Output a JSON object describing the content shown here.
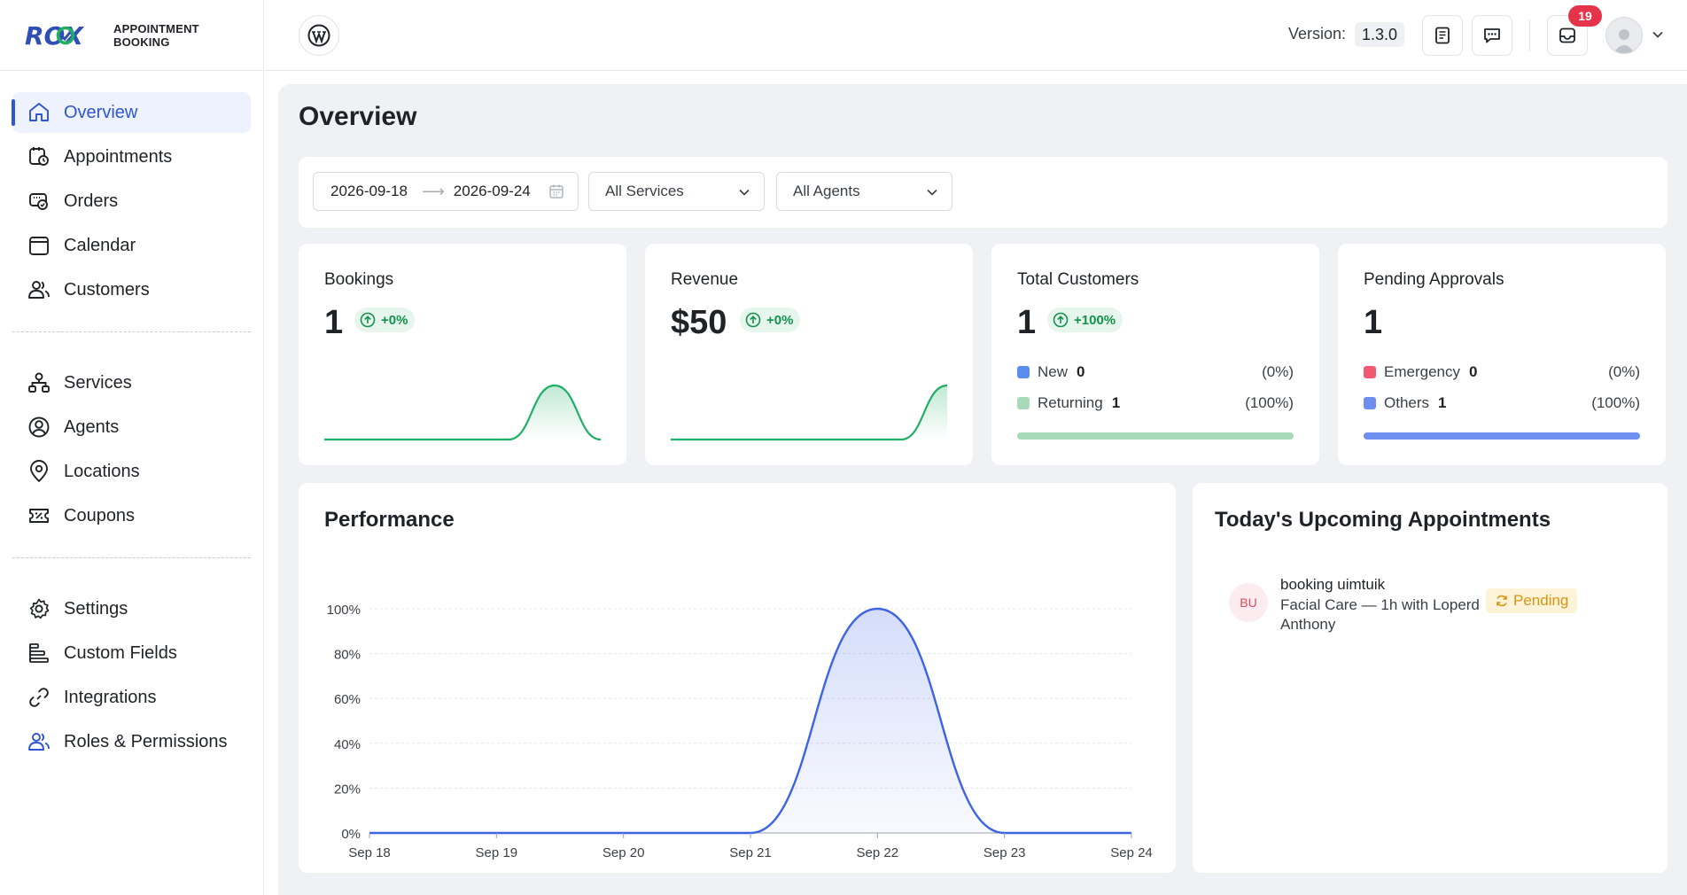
{
  "brand": {
    "logo": "ROX",
    "line1": "APPOINTMENT",
    "line2": "BOOKING"
  },
  "sidebar": {
    "groups": [
      [
        {
          "label": "Overview",
          "icon": "home-icon",
          "active": true
        },
        {
          "label": "Appointments",
          "icon": "appointments-icon"
        },
        {
          "label": "Orders",
          "icon": "orders-icon"
        },
        {
          "label": "Calendar",
          "icon": "calendar-icon"
        },
        {
          "label": "Customers",
          "icon": "customers-icon"
        }
      ],
      [
        {
          "label": "Services",
          "icon": "services-icon"
        },
        {
          "label": "Agents",
          "icon": "agents-icon"
        },
        {
          "label": "Locations",
          "icon": "location-pin-icon"
        },
        {
          "label": "Coupons",
          "icon": "coupon-icon"
        }
      ],
      [
        {
          "label": "Settings",
          "icon": "gear-icon"
        },
        {
          "label": "Custom Fields",
          "icon": "custom-fields-icon"
        },
        {
          "label": "Integrations",
          "icon": "link-icon"
        },
        {
          "label": "Roles & Permissions",
          "icon": "roles-icon"
        }
      ]
    ]
  },
  "topbar": {
    "version_label": "Version:",
    "version": "1.3.0",
    "notification_count": "19"
  },
  "page": {
    "title": "Overview"
  },
  "filters": {
    "start_date": "2026-09-18",
    "end_date": "2026-09-24",
    "services": "All Services",
    "agents": "All Agents"
  },
  "stats": {
    "bookings": {
      "title": "Bookings",
      "value": "1",
      "change": "+0%",
      "sparkline": [
        0,
        0,
        0,
        0,
        0,
        1,
        0
      ]
    },
    "revenue": {
      "title": "Revenue",
      "value": "$50",
      "change": "+0%",
      "sparkline": [
        0,
        0,
        0,
        0,
        0,
        0,
        1
      ]
    },
    "customers": {
      "title": "Total Customers",
      "value": "1",
      "change": "+100%",
      "rows": [
        {
          "label": "New",
          "count": "0",
          "pct": "(0%)",
          "color": "#5b8def"
        },
        {
          "label": "Returning",
          "count": "1",
          "pct": "(100%)",
          "color": "#a8d9b8"
        }
      ],
      "bar_color": "#a8d9b8",
      "bar_fraction": 1.0
    },
    "pending": {
      "title": "Pending Approvals",
      "value": "1",
      "rows": [
        {
          "label": "Emergency",
          "count": "0",
          "pct": "(0%)",
          "color": "#ef5a72"
        },
        {
          "label": "Others",
          "count": "1",
          "pct": "(100%)",
          "color": "#6f8ff0"
        }
      ],
      "bar_color": "#6f8ff0",
      "bar_fraction": 1.0
    }
  },
  "performance": {
    "title": "Performance"
  },
  "chart_data": {
    "type": "area",
    "title": "Performance",
    "categories": [
      "Sep 18",
      "Sep 19",
      "Sep 20",
      "Sep 21",
      "Sep 22",
      "Sep 23",
      "Sep 24"
    ],
    "series": [
      {
        "values": [
          0,
          0,
          0,
          0,
          100,
          0,
          0
        ]
      }
    ],
    "yticks": [
      "0%",
      "20%",
      "40%",
      "60%",
      "80%",
      "100%"
    ],
    "ylim": [
      0,
      100
    ],
    "grid": true,
    "color": "#3d63e6"
  },
  "upcoming": {
    "title": "Today's Upcoming Appointments",
    "items": [
      {
        "initials": "BU",
        "name": "booking uimtuik",
        "description": "Facial Care — 1h with Loperd Anthony",
        "status": "Pending"
      }
    ]
  }
}
